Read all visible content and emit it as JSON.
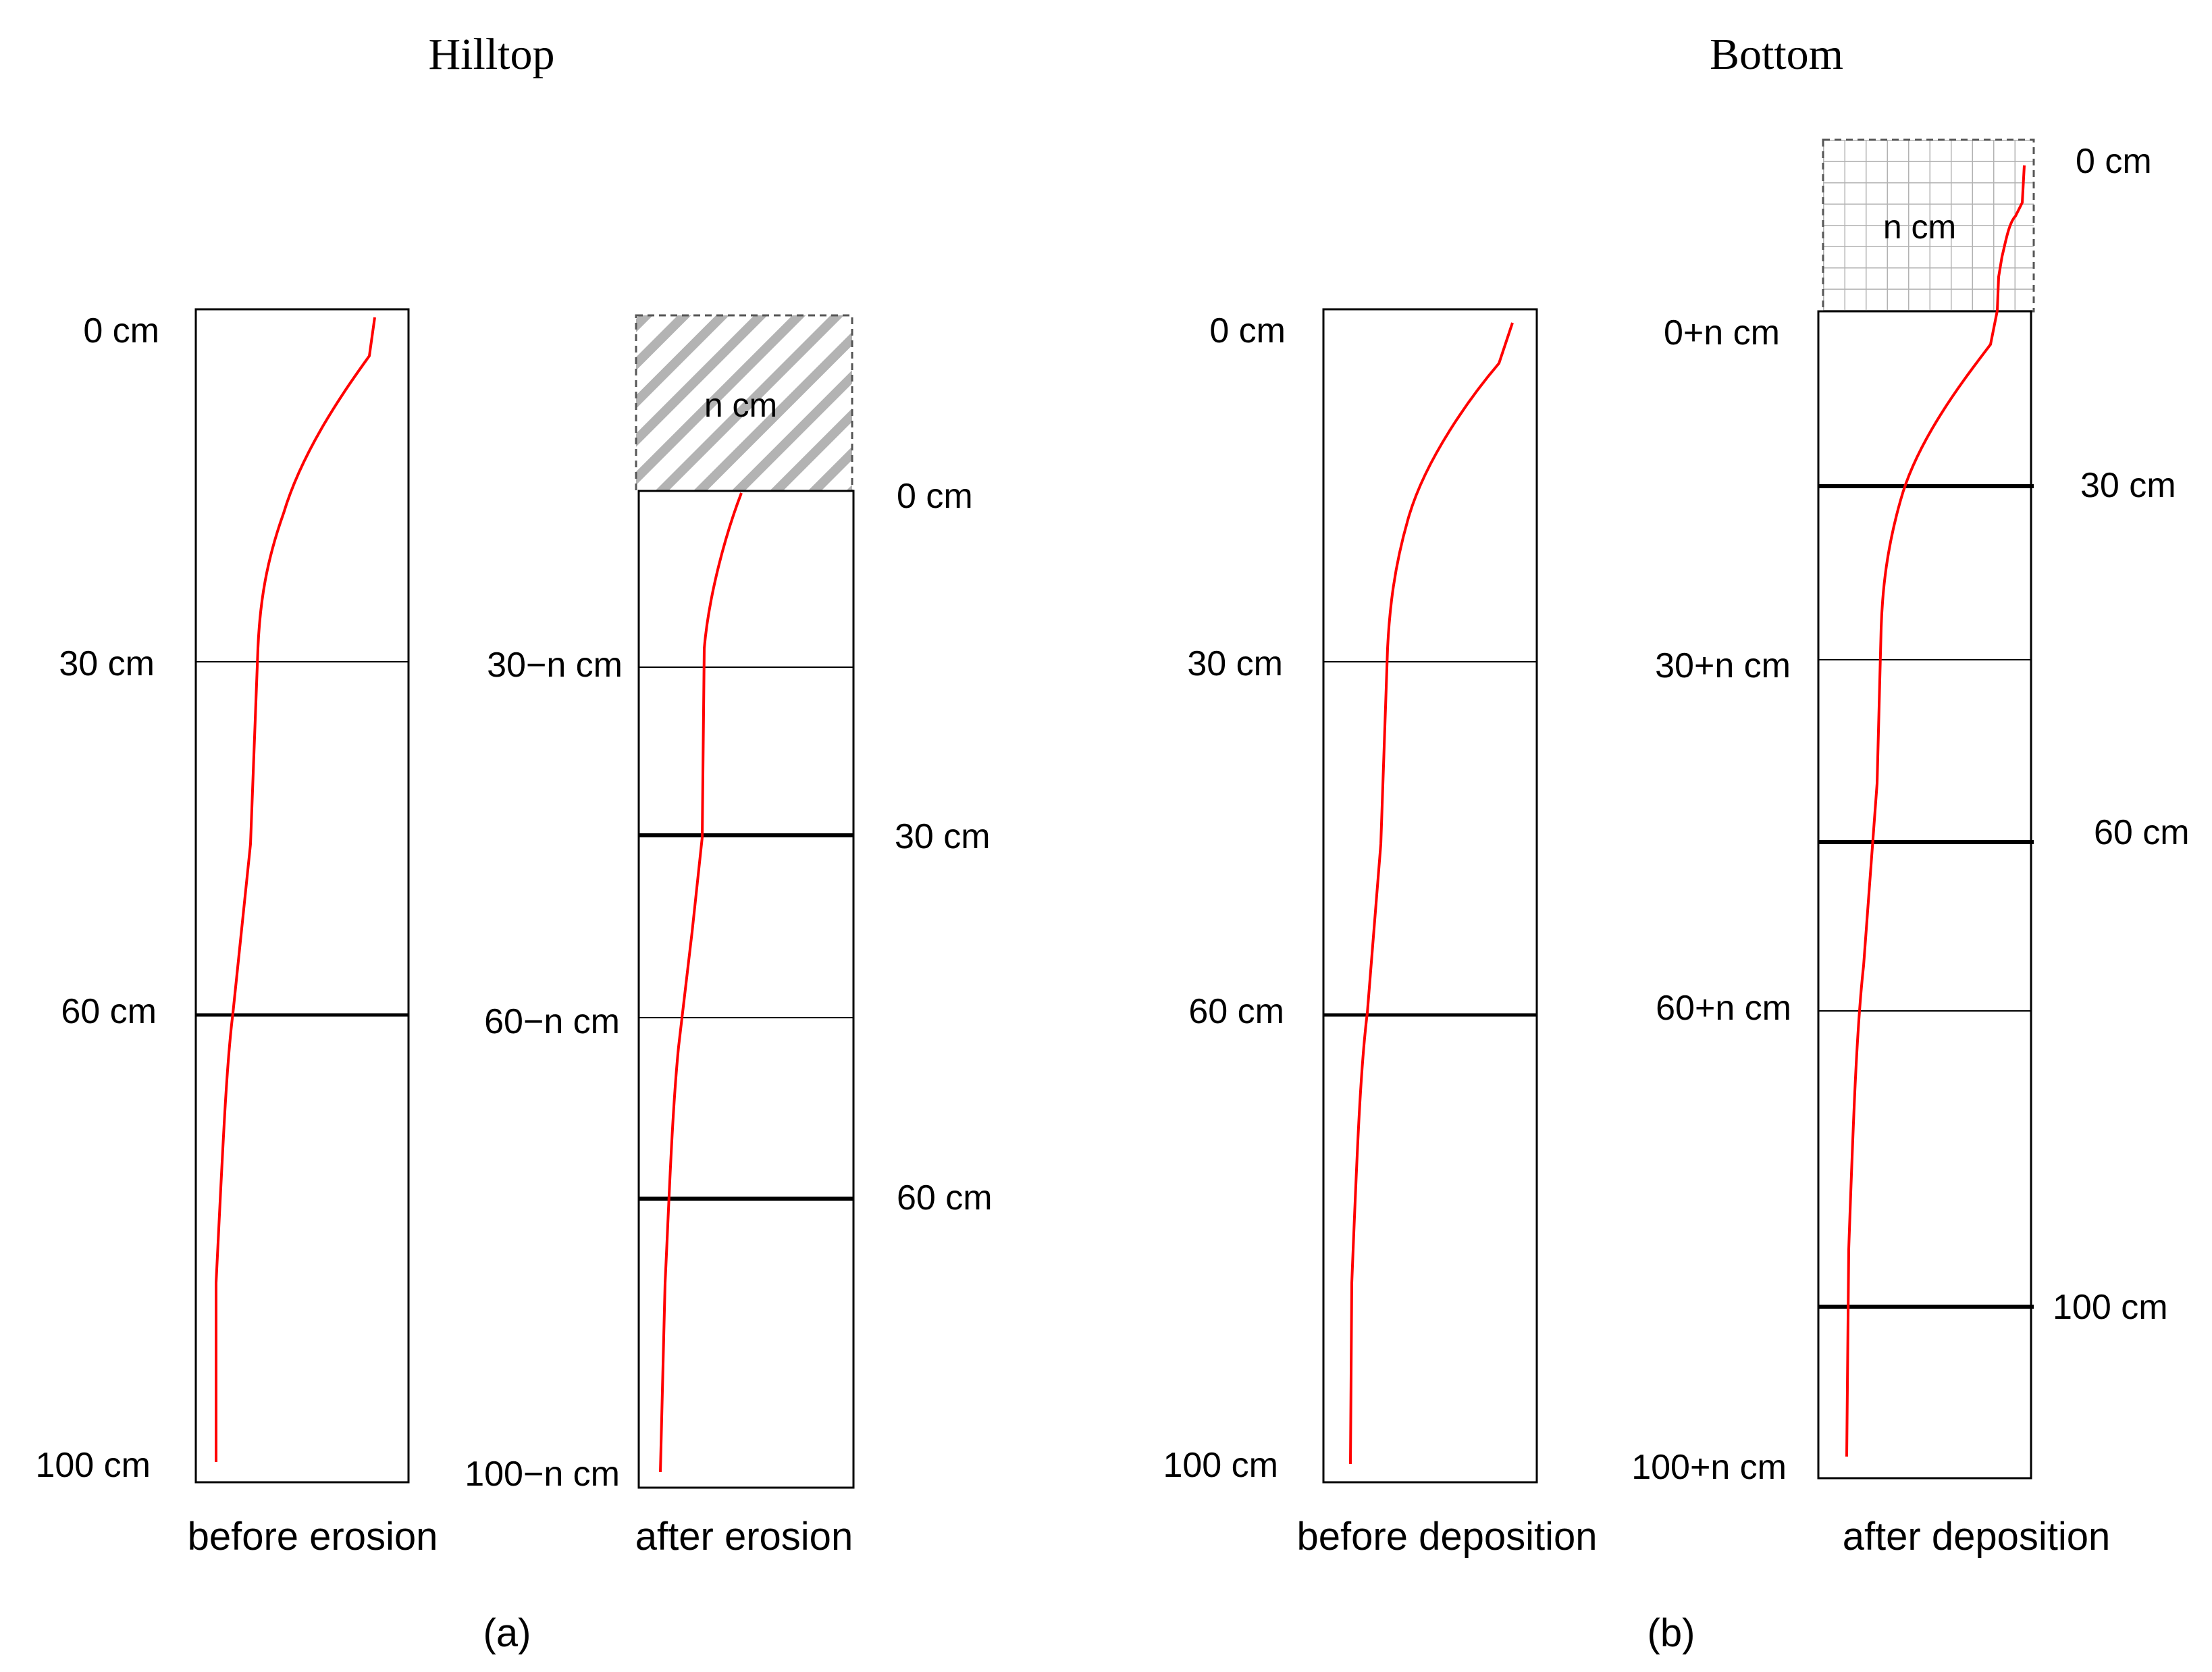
{
  "panels": {
    "a": {
      "title": "Hilltop",
      "caption": "(a)",
      "before": {
        "label": "before erosion",
        "depths": [
          "0 cm",
          "30 cm",
          "60 cm",
          "100 cm"
        ]
      },
      "after": {
        "label": "after erosion",
        "layer_label": "n cm",
        "left_depths": [
          "30−n cm",
          "60−n cm",
          "100−n cm"
        ],
        "right_depths": [
          "0 cm",
          "30 cm",
          "60 cm"
        ]
      }
    },
    "b": {
      "title": "Bottom",
      "caption": "(b)",
      "before": {
        "label": "before deposition",
        "depths": [
          "0 cm",
          "30 cm",
          "60 cm",
          "100 cm"
        ]
      },
      "after": {
        "label": "after deposition",
        "layer_label": "n cm",
        "left_depths": [
          "0+n cm",
          "30+n cm",
          "60+n cm",
          "100+n cm"
        ],
        "right_depths": [
          "0 cm",
          "30 cm",
          "60 cm",
          "100 cm"
        ]
      }
    }
  },
  "colors": {
    "profile_curve": "#ff0000",
    "line": "#000000",
    "layer_hatch": "#b3b3b3",
    "layer_border": "#666666"
  }
}
